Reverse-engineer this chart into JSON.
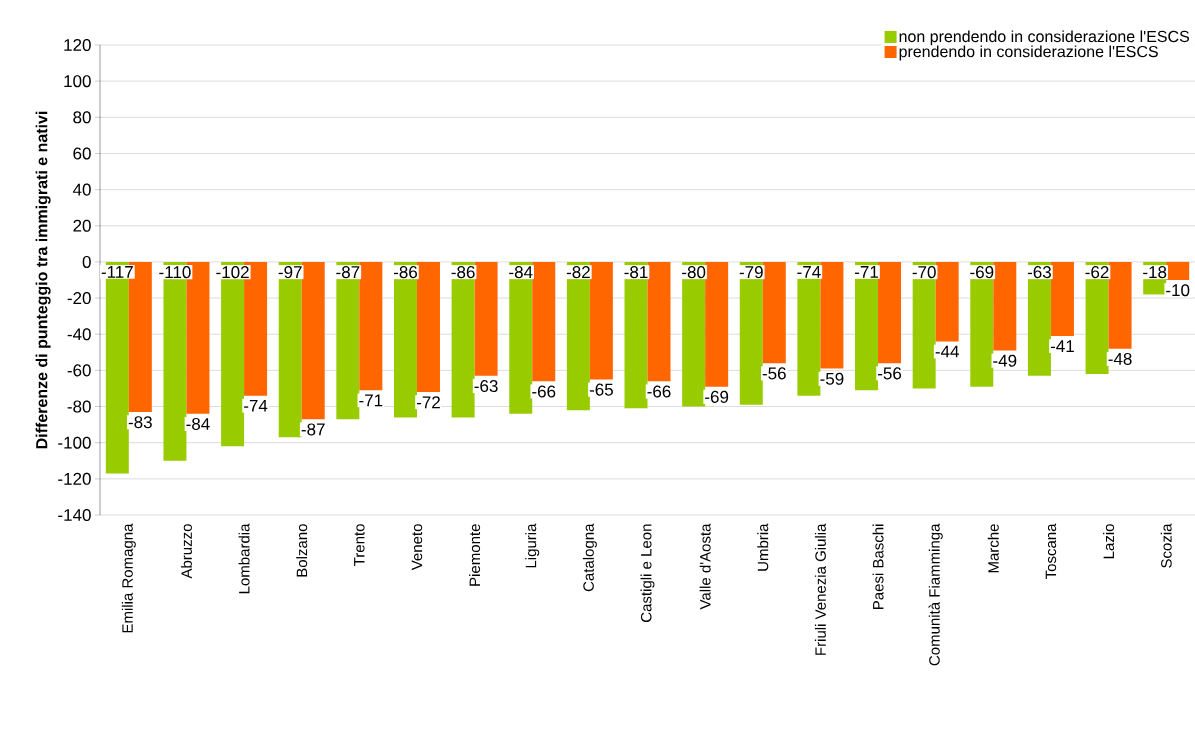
{
  "chart_data": {
    "type": "bar",
    "ylabel": "Differenze di punteggio tra immigrati e nativi",
    "categories": [
      "Emilia Romagna",
      "Abruzzo",
      "Lombardia",
      "Bolzano",
      "Trento",
      "Veneto",
      "Piemonte",
      "Liguria",
      "Catalogna",
      "Castigli e Leon",
      "Valle d'Aosta",
      "Umbria",
      "Friuli Venezia Giulia",
      "Paesi Baschi",
      "Comunità Fiamminga",
      "Marche",
      "Toscana",
      "Lazio",
      "Scozia"
    ],
    "series": [
      {
        "name": "non prendendo in considerazione l'ESCS",
        "color": "#99cc00",
        "values": [
          -117,
          -110,
          -102,
          -97,
          -87,
          -86,
          -86,
          -84,
          -82,
          -81,
          -80,
          -79,
          -74,
          -71,
          -70,
          -69,
          -63,
          -62,
          -18
        ]
      },
      {
        "name": "prendendo in considerazione l'ESCS",
        "color": "#ff6600",
        "values": [
          -83,
          -84,
          -74,
          -87,
          -71,
          -72,
          -63,
          -66,
          -65,
          -66,
          -69,
          -56,
          -59,
          -56,
          -44,
          -49,
          -41,
          -48,
          -10
        ]
      }
    ],
    "ylim": [
      -140,
      120
    ],
    "yticks": [
      -140,
      -120,
      -100,
      -80,
      -60,
      -40,
      -20,
      0,
      20,
      40,
      60,
      80,
      100,
      120
    ],
    "grid": "y",
    "legend": "top right",
    "data_labels": true
  }
}
